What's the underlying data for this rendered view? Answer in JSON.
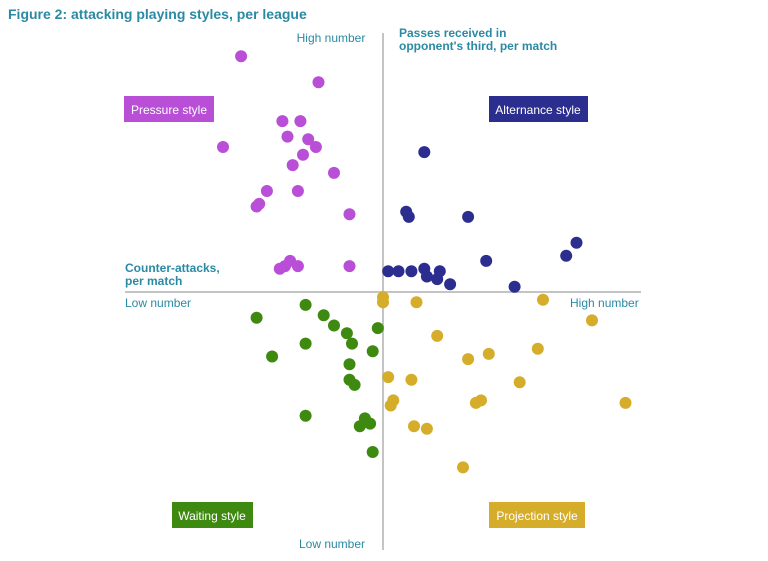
{
  "figure_title": "Figure 2: attacking playing styles, per league",
  "chart_data": {
    "type": "scatter",
    "title": "",
    "x_axis": {
      "title_lines": [
        "Counter-attacks,",
        "per match"
      ],
      "low_label": "Low number",
      "high_label": "High number"
    },
    "y_axis": {
      "title_lines": [
        "Passes received in",
        "opponent's third, per match"
      ],
      "low_label": "Low number",
      "high_label": "High number"
    },
    "xlim": [
      -10,
      10
    ],
    "ylim": [
      -10,
      10
    ],
    "quadrants": [
      {
        "label": "Pressure style",
        "position": "top-left",
        "color": "#b84fd6"
      },
      {
        "label": "Alternance style",
        "position": "top-right",
        "color": "#2b2e8f"
      },
      {
        "label": "Waiting style",
        "position": "bottom-left",
        "color": "#3e8a10"
      },
      {
        "label": "Projection style",
        "position": "bottom-right",
        "color": "#d6ad2a"
      }
    ],
    "series": [
      {
        "style": "Pressure style",
        "color": "#b84fd6",
        "points": [
          [
            -5.5,
            9.1
          ],
          [
            -2.5,
            8.1
          ],
          [
            -3.9,
            6.6
          ],
          [
            -3.2,
            6.6
          ],
          [
            -3.7,
            6.0
          ],
          [
            -2.9,
            5.9
          ],
          [
            -2.6,
            5.6
          ],
          [
            -6.2,
            5.6
          ],
          [
            -3.1,
            5.3
          ],
          [
            -3.5,
            4.9
          ],
          [
            -1.9,
            4.6
          ],
          [
            -4.5,
            3.9
          ],
          [
            -3.3,
            3.9
          ],
          [
            -4.8,
            3.4
          ],
          [
            -4.9,
            3.3
          ],
          [
            -1.3,
            3.0
          ],
          [
            -3.6,
            1.2
          ],
          [
            -3.8,
            1.0
          ],
          [
            -3.3,
            1.0
          ],
          [
            -4.0,
            0.9
          ],
          [
            -1.3,
            1.0
          ]
        ]
      },
      {
        "style": "Alternance style",
        "color": "#2b2e8f",
        "points": [
          [
            1.6,
            5.4
          ],
          [
            0.9,
            3.1
          ],
          [
            1.0,
            2.9
          ],
          [
            3.3,
            2.9
          ],
          [
            7.5,
            1.9
          ],
          [
            7.1,
            1.4
          ],
          [
            4.0,
            1.2
          ],
          [
            0.2,
            0.8
          ],
          [
            0.6,
            0.8
          ],
          [
            1.1,
            0.8
          ],
          [
            1.6,
            0.9
          ],
          [
            2.2,
            0.8
          ],
          [
            1.7,
            0.6
          ],
          [
            2.1,
            0.5
          ],
          [
            2.6,
            0.3
          ],
          [
            5.1,
            0.2
          ]
        ]
      },
      {
        "style": "Waiting style",
        "color": "#3e8a10",
        "points": [
          [
            -3.0,
            -0.5
          ],
          [
            -4.9,
            -1.0
          ],
          [
            -2.3,
            -0.9
          ],
          [
            -1.9,
            -1.3
          ],
          [
            -1.4,
            -1.6
          ],
          [
            -0.2,
            -1.4
          ],
          [
            -1.2,
            -2.0
          ],
          [
            -3.0,
            -2.0
          ],
          [
            -0.4,
            -2.3
          ],
          [
            -4.3,
            -2.5
          ],
          [
            -1.3,
            -2.8
          ],
          [
            -1.3,
            -3.4
          ],
          [
            -1.1,
            -3.6
          ],
          [
            -3.0,
            -4.8
          ],
          [
            -0.7,
            -4.9
          ],
          [
            -0.5,
            -5.1
          ],
          [
            -0.9,
            -5.2
          ],
          [
            -0.4,
            -6.2
          ]
        ]
      },
      {
        "style": "Projection style",
        "color": "#d6ad2a",
        "points": [
          [
            0.0,
            -0.2
          ],
          [
            0.0,
            -0.4
          ],
          [
            1.3,
            -0.4
          ],
          [
            6.2,
            -0.3
          ],
          [
            8.1,
            -1.1
          ],
          [
            2.1,
            -1.7
          ],
          [
            6.0,
            -2.2
          ],
          [
            4.1,
            -2.4
          ],
          [
            3.3,
            -2.6
          ],
          [
            0.2,
            -3.3
          ],
          [
            1.1,
            -3.4
          ],
          [
            5.3,
            -3.5
          ],
          [
            0.4,
            -4.2
          ],
          [
            0.3,
            -4.4
          ],
          [
            3.8,
            -4.2
          ],
          [
            3.6,
            -4.3
          ],
          [
            9.4,
            -4.3
          ],
          [
            1.2,
            -5.2
          ],
          [
            1.7,
            -5.3
          ],
          [
            3.1,
            -6.8
          ]
        ]
      }
    ]
  }
}
